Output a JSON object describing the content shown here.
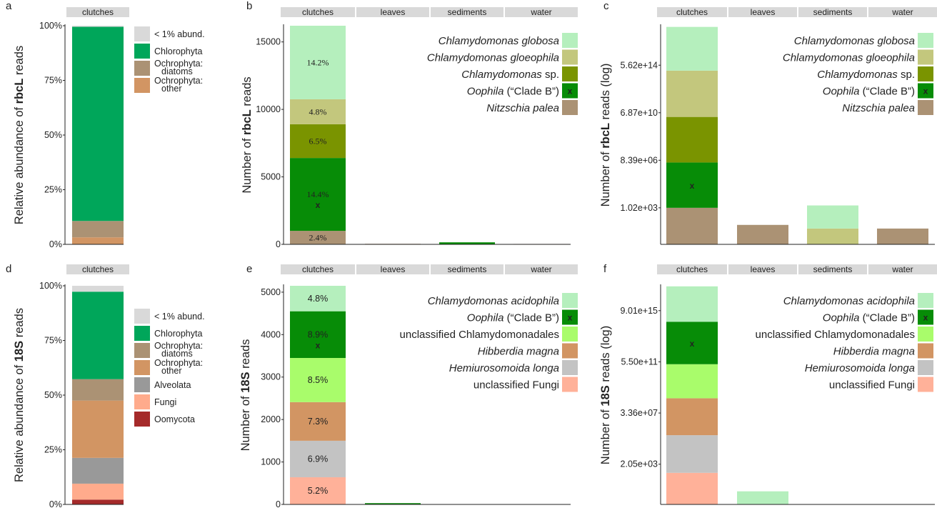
{
  "colors": {
    "lt1": "#d9d9d9",
    "chlorophyta": "#00a65a",
    "diatoms": "#ab9274",
    "ochro_other": "#d29563",
    "alveolata": "#999999",
    "fungi": "#ffab8c",
    "oomycota": "#a52a2a",
    "globosa": "#b5efbd",
    "gloeophila": "#c3c77d",
    "cspp": "#7a9400",
    "oophila": "#078c07",
    "nitzschia": "#ab9274",
    "acidophila": "#b5efbd",
    "unclass_chlam": "#a9fc6b",
    "hibberdia": "#d29563",
    "hemiuro": "#c3c3c3",
    "ufungi": "#ffb199",
    "strip": "#d9d9d9"
  },
  "chart_data": [
    {
      "panel": "a",
      "type": "bar",
      "stacked": true,
      "facets": [
        "clutches"
      ],
      "ylabel_prefix": "Relative abundance of ",
      "ylabel_bold": "rbcL",
      "ylabel_suffix": " reads",
      "ylim": [
        0,
        100
      ],
      "yticks": [
        0,
        25,
        50,
        75,
        100
      ],
      "ytick_labels": [
        "0%",
        "25%",
        "50%",
        "75%",
        "100%"
      ],
      "segments": [
        {
          "facet": "clutches",
          "name": "Ochrophyta: other",
          "color": "ochro_other",
          "value": 3.2
        },
        {
          "facet": "clutches",
          "name": "Ochrophyta: diatoms",
          "color": "diatoms",
          "value": 7.5
        },
        {
          "facet": "clutches",
          "name": "Chlorophyta",
          "color": "chlorophyta",
          "value": 88.8
        },
        {
          "facet": "clutches",
          "name": "< 1% abund.",
          "color": "lt1",
          "value": 0.5
        }
      ],
      "legend": [
        {
          "label": "< 1% abund.",
          "color": "lt1"
        },
        {
          "label": "Chlorophyta",
          "color": "chlorophyta"
        },
        {
          "label": "Ochrophyta:\ndiatoms",
          "color": "diatoms"
        },
        {
          "label": "Ochrophyta:\nother",
          "color": "ochro_other"
        }
      ]
    },
    {
      "panel": "b",
      "type": "bar",
      "stacked": true,
      "facets": [
        "clutches",
        "leaves",
        "sediments",
        "water"
      ],
      "ylabel_prefix": "Number of ",
      "ylabel_bold": "rbcL",
      "ylabel_suffix": " reads",
      "ylim": [
        0,
        16200
      ],
      "yticks": [
        0,
        5000,
        10000,
        15000
      ],
      "ytick_labels": [
        "0",
        "5000",
        "10000",
        "15000"
      ],
      "segments": [
        {
          "facet": "clutches",
          "name": "Nitzschia palea",
          "color": "nitzschia",
          "value": 1000,
          "label": "2.4%"
        },
        {
          "facet": "clutches",
          "name": "Oophila (“Clade B”)",
          "color": "oophila",
          "value": 5400,
          "label": "14.4%",
          "mark": "x"
        },
        {
          "facet": "clutches",
          "name": "Chlamydomonas sp.",
          "color": "cspp",
          "value": 2500,
          "label": "6.5%"
        },
        {
          "facet": "clutches",
          "name": "Chlamydomonas gloeophila",
          "color": "gloeophila",
          "value": 1850,
          "label": "4.8%"
        },
        {
          "facet": "clutches",
          "name": "Chlamydomonas globosa",
          "color": "globosa",
          "value": 5450,
          "label": "14.2%"
        },
        {
          "facet": "leaves",
          "name": "Nitzschia palea",
          "color": "nitzschia",
          "value": 40
        },
        {
          "facet": "sediments",
          "name": "Oophila (“Clade B”)",
          "color": "oophila",
          "value": 150
        },
        {
          "facet": "water",
          "name": "Nitzschia palea",
          "color": "nitzschia",
          "value": 30
        }
      ],
      "legend": [
        {
          "italic": "Chlamydomonas globosa",
          "rest": "",
          "color": "globosa"
        },
        {
          "italic": "Chlamydomonas gloeophila",
          "rest": "",
          "color": "gloeophila"
        },
        {
          "italic": "Chlamydomonas",
          "rest": " sp.",
          "color": "cspp"
        },
        {
          "italic": "Oophila",
          "rest": " (“Clade B”)",
          "color": "oophila",
          "mark": "x"
        },
        {
          "italic": "Nitzschia palea",
          "rest": "",
          "color": "nitzschia"
        }
      ]
    },
    {
      "panel": "c",
      "type": "bar",
      "stacked": true,
      "yscale": "log",
      "facets": [
        "clutches",
        "leaves",
        "sediments",
        "water"
      ],
      "ylabel_prefix": "Number of ",
      "ylabel_bold": "rbcL",
      "ylabel_suffix": " reads (log)",
      "ylim": [
        1,
        1e+18
      ],
      "yticks": [
        1020,
        8390000,
        68700000000,
        562000000000000
      ],
      "ytick_labels": [
        "1.02e+03",
        "8.39e+06",
        "6.87e+10",
        "5.62e+14"
      ],
      "segments": [
        {
          "facet": "clutches",
          "name": "Nitzschia palea",
          "color": "nitzschia",
          "top": 1020
        },
        {
          "facet": "clutches",
          "name": "Oophila (“Clade B”)",
          "color": "oophila",
          "top": 5500000.0,
          "mark": "x"
        },
        {
          "facet": "clutches",
          "name": "Chlamydomonas sp.",
          "color": "cspp",
          "top": 31000000000.0
        },
        {
          "facet": "clutches",
          "name": "Chlamydomonas gloeophila",
          "color": "gloeophila",
          "top": 200000000000000.0
        },
        {
          "facet": "clutches",
          "name": "Chlamydomonas globosa",
          "color": "globosa",
          "top": 8e+17
        },
        {
          "facet": "leaves",
          "name": "Nitzschia palea",
          "color": "nitzschia",
          "top": 40
        },
        {
          "facet": "sediments",
          "name": "Chlamydomonas gloeophila",
          "color": "gloeophila",
          "top": 20
        },
        {
          "facet": "sediments",
          "name": "Chlamydomonas globosa",
          "color": "globosa",
          "top": 1600
        },
        {
          "facet": "water",
          "name": "Nitzschia palea",
          "color": "nitzschia",
          "top": 20
        }
      ],
      "legend": [
        {
          "italic": "Chlamydomonas globosa",
          "rest": "",
          "color": "globosa"
        },
        {
          "italic": "Chlamydomonas gloeophila",
          "rest": "",
          "color": "gloeophila"
        },
        {
          "italic": "Chlamydomonas",
          "rest": " sp.",
          "color": "cspp"
        },
        {
          "italic": "Oophila",
          "rest": " (“Clade B”)",
          "color": "oophila",
          "mark": "x"
        },
        {
          "italic": "Nitzschia palea",
          "rest": "",
          "color": "nitzschia"
        }
      ]
    },
    {
      "panel": "d",
      "type": "bar",
      "stacked": true,
      "facets": [
        "clutches"
      ],
      "ylabel_prefix": "Relative abundance of ",
      "ylabel_bold": "18S",
      "ylabel_suffix": " reads",
      "ylim": [
        0,
        100
      ],
      "yticks": [
        0,
        25,
        50,
        75,
        100
      ],
      "ytick_labels": [
        "0%",
        "25%",
        "50%",
        "75%",
        "100%"
      ],
      "segments": [
        {
          "facet": "clutches",
          "name": "Oomycota",
          "color": "oomycota",
          "value": 2.2
        },
        {
          "facet": "clutches",
          "name": "Fungi",
          "color": "fungi",
          "value": 7.3
        },
        {
          "facet": "clutches",
          "name": "Alveolata",
          "color": "alveolata",
          "value": 11.8
        },
        {
          "facet": "clutches",
          "name": "Ochrophyta: other",
          "color": "ochro_other",
          "value": 26.2
        },
        {
          "facet": "clutches",
          "name": "Ochrophyta: diatoms",
          "color": "diatoms",
          "value": 9.8
        },
        {
          "facet": "clutches",
          "name": "Chlorophyta",
          "color": "chlorophyta",
          "value": 40.0
        },
        {
          "facet": "clutches",
          "name": "< 1% abund.",
          "color": "lt1",
          "value": 2.7
        }
      ],
      "legend": [
        {
          "label": "< 1% abund.",
          "color": "lt1"
        },
        {
          "label": "Chlorophyta",
          "color": "chlorophyta"
        },
        {
          "label": "Ochrophyta:\ndiatoms",
          "color": "diatoms"
        },
        {
          "label": "Ochrophyta:\nother",
          "color": "ochro_other"
        },
        {
          "label": "Alveolata",
          "color": "alveolata"
        },
        {
          "label": "Fungi",
          "color": "fungi"
        },
        {
          "label": "Oomycota",
          "color": "oomycota"
        }
      ]
    },
    {
      "panel": "e",
      "type": "bar",
      "stacked": true,
      "facets": [
        "clutches",
        "leaves",
        "sediments",
        "water"
      ],
      "ylabel_prefix": "Number of ",
      "ylabel_bold": "18S",
      "ylabel_suffix": " reads",
      "ylim": [
        0,
        5150
      ],
      "yticks": [
        0,
        1000,
        2000,
        3000,
        4000,
        5000
      ],
      "ytick_labels": [
        "0",
        "1000",
        "2000",
        "3000",
        "4000",
        "5000"
      ],
      "segments": [
        {
          "facet": "clutches",
          "name": "unclassified Fungi",
          "color": "ufungi",
          "value": 640,
          "label": "5.2%"
        },
        {
          "facet": "clutches",
          "name": "Hemiurosomoida longa",
          "color": "hemiuro",
          "value": 860,
          "label": "6.9%"
        },
        {
          "facet": "clutches",
          "name": "Hibberdia magna",
          "color": "hibberdia",
          "value": 910,
          "label": "7.3%"
        },
        {
          "facet": "clutches",
          "name": "unclassified Chlamydomonadales",
          "color": "unclass_chlam",
          "value": 1040,
          "label": "8.5%"
        },
        {
          "facet": "clutches",
          "name": "Oophila (“Clade B”)",
          "color": "oophila",
          "value": 1100,
          "label": "8.9%",
          "mark": "x"
        },
        {
          "facet": "clutches",
          "name": "Chlamydomonas acidophila",
          "color": "acidophila",
          "value": 600,
          "label": "4.8%"
        },
        {
          "facet": "leaves",
          "name": "Oophila (“Clade B”)",
          "color": "oophila",
          "value": 30
        }
      ],
      "legend": [
        {
          "italic": "Chlamydomonas acidophila",
          "rest": "",
          "color": "acidophila"
        },
        {
          "italic": "Oophila",
          "rest": " (“Clade B”)",
          "color": "oophila",
          "mark": "x"
        },
        {
          "italic": "",
          "rest": "unclassified Chlamydomonadales",
          "color": "unclass_chlam"
        },
        {
          "italic": "Hibberdia magna",
          "rest": "",
          "color": "hibberdia"
        },
        {
          "italic": "Hemiurosomoida longa",
          "rest": "",
          "color": "hemiuro"
        },
        {
          "italic": "",
          "rest": "unclassified Fungi",
          "color": "ufungi"
        }
      ]
    },
    {
      "panel": "f",
      "type": "bar",
      "stacked": true,
      "yscale": "log",
      "facets": [
        "clutches",
        "leaves",
        "sediments",
        "water"
      ],
      "ylabel_prefix": "Number of ",
      "ylabel_bold": "18S",
      "ylabel_suffix": " reads (log)",
      "ylim": [
        1,
        1e+18
      ],
      "yticks": [
        2050,
        33600000,
        550000000000,
        9010000000000000
      ],
      "ytick_labels": [
        "2.05e+03",
        "3.36e+07",
        "5.50e+11",
        "9.01e+15"
      ],
      "segments": [
        {
          "facet": "clutches",
          "name": "unclassified Fungi",
          "color": "ufungi",
          "top": 400
        },
        {
          "facet": "clutches",
          "name": "Hemiurosomoida longa",
          "color": "hemiuro",
          "top": 500000.0
        },
        {
          "facet": "clutches",
          "name": "Hibberdia magna",
          "color": "hibberdia",
          "top": 550000000.0
        },
        {
          "facet": "clutches",
          "name": "unclassified Chlamydomonadales",
          "color": "unclass_chlam",
          "top": 350000000000.0
        },
        {
          "facet": "clutches",
          "name": "Oophila (“Clade B”)",
          "color": "oophila",
          "top": 1100000000000000.0,
          "mark": "x"
        },
        {
          "facet": "clutches",
          "name": "Chlamydomonas acidophila",
          "color": "acidophila",
          "top": 9e+17
        },
        {
          "facet": "leaves",
          "name": "Chlamydomonas acidophila",
          "color": "acidophila",
          "top": 12
        }
      ],
      "legend": [
        {
          "italic": "Chlamydomonas acidophila",
          "rest": "",
          "color": "acidophila"
        },
        {
          "italic": "Oophila",
          "rest": " (“Clade B”)",
          "color": "oophila",
          "mark": "x"
        },
        {
          "italic": "",
          "rest": "unclassified Chlamydomonadales",
          "color": "unclass_chlam"
        },
        {
          "italic": "Hibberdia magna",
          "rest": "",
          "color": "hibberdia"
        },
        {
          "italic": "Hemiurosomoida longa",
          "rest": "",
          "color": "hemiuro"
        },
        {
          "italic": "",
          "rest": "unclassified Fungi",
          "color": "ufungi"
        }
      ]
    }
  ]
}
